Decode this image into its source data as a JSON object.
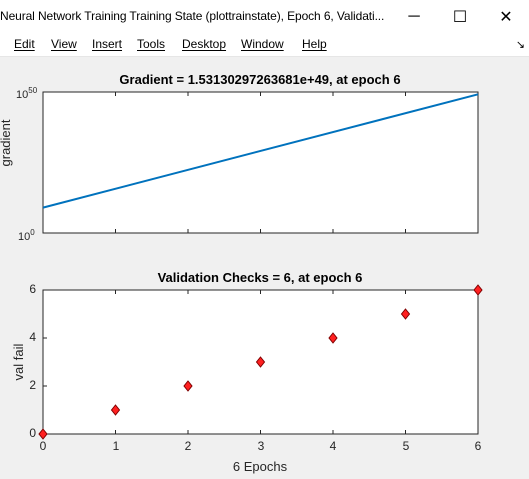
{
  "window": {
    "title": "Neural Network Training Training State (plottrainstate), Epoch 6, Validati...",
    "buttons": {
      "minimize": "─",
      "maximize": "☐",
      "close": "✕"
    }
  },
  "menubar": {
    "items": [
      "Edit",
      "View",
      "Insert",
      "Tools",
      "Desktop",
      "Window",
      "Help"
    ],
    "dock_icon": "↘"
  },
  "gradient_plot": {
    "title": "Gradient = 1.53130297263681e+49, at epoch 6",
    "ylabel": "gradient",
    "ytick_labels": [
      {
        "base": "10",
        "exp": "0"
      },
      {
        "base": "10",
        "exp": "50"
      }
    ]
  },
  "validation_plot": {
    "title": "Validation Checks = 6, at epoch 6",
    "ylabel": "val fail",
    "xlabel": "6 Epochs",
    "yticks": [
      "0",
      "2",
      "4",
      "6"
    ],
    "xticks": [
      "0",
      "1",
      "2",
      "3",
      "4",
      "5",
      "6"
    ]
  },
  "colors": {
    "line": "#0072bd",
    "marker_fill": "#ff2020",
    "marker_edge": "#7f0000"
  },
  "chart_data": [
    {
      "type": "line",
      "title": "Gradient = 1.53130297263681e+49, at epoch 6",
      "ylabel": "gradient",
      "yscale": "log",
      "ylim": [
        1,
        1e+50
      ],
      "xlim": [
        0,
        6
      ],
      "x": [
        0,
        6
      ],
      "y": [
        1000000000.0,
        1.53130297263681e+49
      ]
    },
    {
      "type": "scatter",
      "title": "Validation Checks = 6, at epoch 6",
      "xlabel": "6 Epochs",
      "ylabel": "val fail",
      "xlim": [
        0,
        6
      ],
      "ylim": [
        0,
        6
      ],
      "x": [
        0,
        1,
        2,
        3,
        4,
        5,
        6
      ],
      "y": [
        0,
        1,
        2,
        3,
        4,
        5,
        6
      ]
    }
  ]
}
